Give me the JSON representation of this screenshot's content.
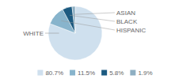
{
  "chart_data": {
    "type": "pie",
    "categories": [
      "WHITE",
      "HISPANIC",
      "BLACK",
      "ASIAN"
    ],
    "values": [
      80.7,
      11.5,
      5.8,
      1.9
    ],
    "value_labels": [
      "80.7%",
      "11.5%",
      "5.8%",
      "1.9%"
    ],
    "colors": [
      "#cfe0ee",
      "#88b4cc",
      "#1c5a80",
      "#8eafc2"
    ],
    "legend": "bottom"
  }
}
